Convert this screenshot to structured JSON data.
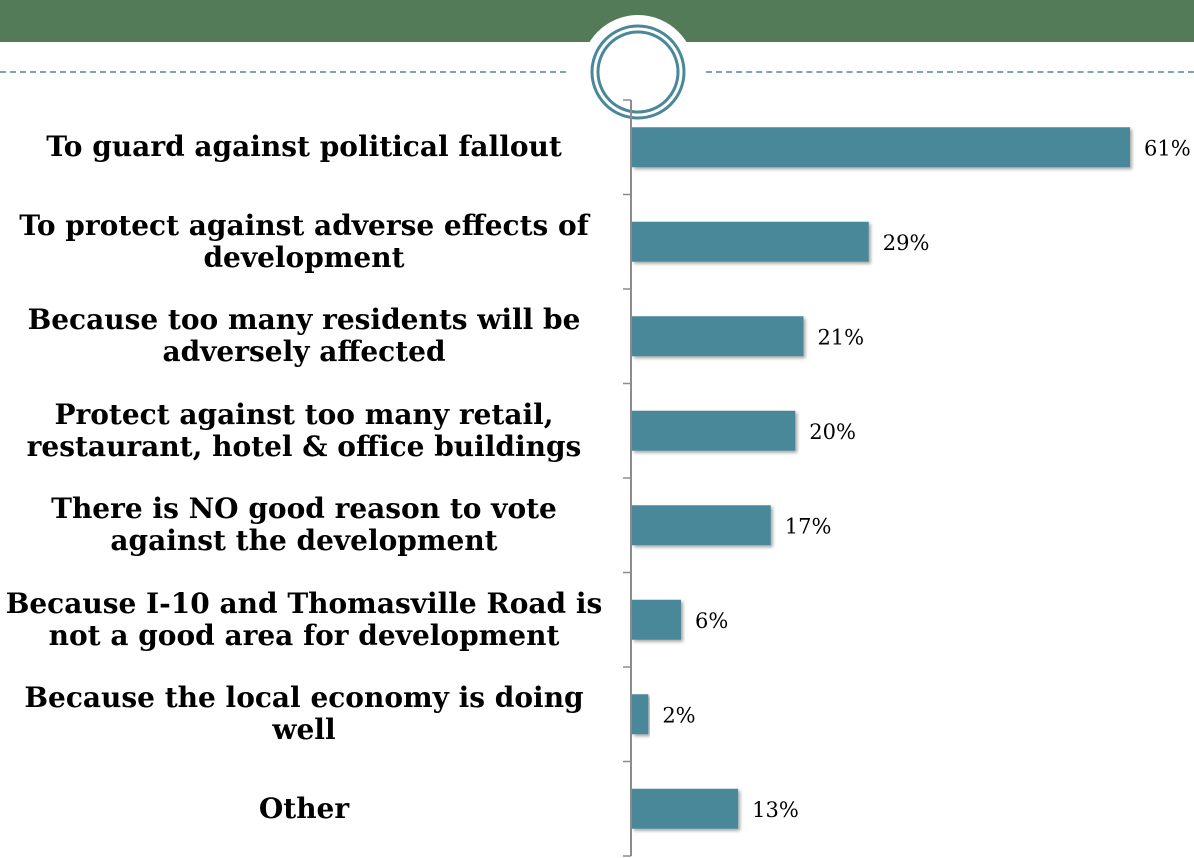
{
  "colors": {
    "header_band": "#537b57",
    "bar_fill": "#4a8899",
    "dashed_rule": "#7ea3bd",
    "ornament_ring": "#4a8899"
  },
  "chart_data": {
    "type": "bar",
    "orientation": "horizontal",
    "categories": [
      "To guard against political fallout",
      "To protect against adverse effects of development",
      "Because too many residents will be adversely affected",
      "Protect against too many retail, restaurant, hotel & office buildings",
      "There is NO good reason to vote against the development",
      "Because I-10 and Thomasville Road is not a good area for development",
      "Because the local economy is doing well",
      "Other"
    ],
    "label_lines": [
      [
        "To guard against political fallout"
      ],
      [
        "To protect against adverse effects of",
        "development"
      ],
      [
        "Because too many residents will be",
        "adversely affected"
      ],
      [
        "Protect against too many retail,",
        "restaurant, hotel & office buildings"
      ],
      [
        "There is NO good reason to vote",
        "against the development"
      ],
      [
        "Because I-10 and Thomasville Road is",
        "not a good area for development"
      ],
      [
        "Because the local economy is doing",
        "well"
      ],
      [
        "Other"
      ]
    ],
    "values": [
      61,
      29,
      21,
      20,
      17,
      6,
      2,
      13
    ],
    "data_labels": [
      "61%",
      "29%",
      "21%",
      "20%",
      "17%",
      "6%",
      "2%",
      "13%"
    ],
    "unit": "%",
    "xlim": [
      0,
      61
    ],
    "grid": false,
    "legend": "none"
  }
}
